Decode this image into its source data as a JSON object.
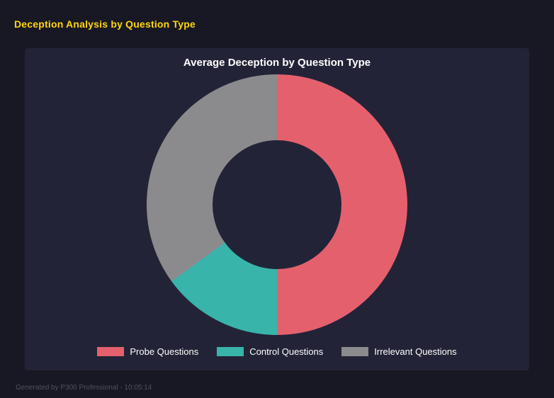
{
  "header": {
    "title": "Deception Analysis by Question Type",
    "title_color": "#ffd60a"
  },
  "panel": {
    "background": "#232337"
  },
  "chart_data": {
    "type": "pie",
    "variant": "donut",
    "title": "Average Deception by Question Type",
    "categories": [
      "Probe Questions",
      "Control Questions",
      "Irrelevant Questions"
    ],
    "values": [
      50,
      15,
      35
    ],
    "colors": [
      "#e5606d",
      "#38b4ab",
      "#8b8b8e"
    ],
    "legend_position": "bottom",
    "hole_ratio": 0.5,
    "start_angle_deg": 0,
    "direction": "clockwise"
  },
  "footer": {
    "text": "Generated by P300 Professional - 10:05:14"
  }
}
